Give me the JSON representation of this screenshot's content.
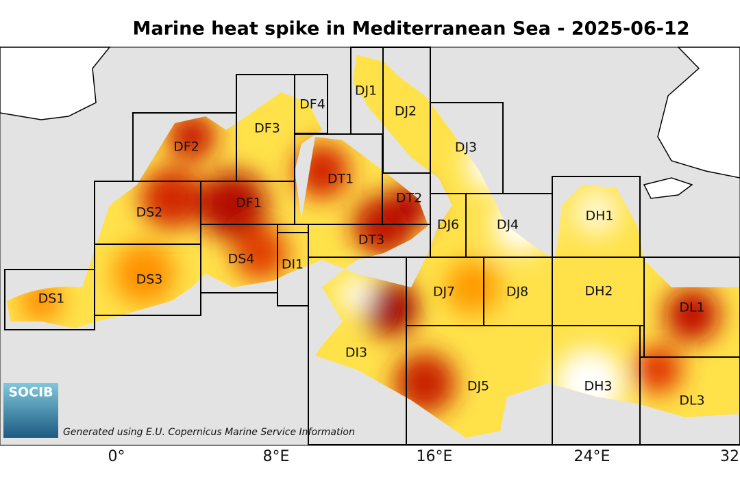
{
  "title": "Marine heat spike in Mediterranean Sea - 2025-06-12",
  "regions": [
    {
      "label": "DS1"
    },
    {
      "label": "DS2"
    },
    {
      "label": "DS3"
    },
    {
      "label": "DS4"
    },
    {
      "label": "DF1"
    },
    {
      "label": "DF2"
    },
    {
      "label": "DF3"
    },
    {
      "label": "DF4"
    },
    {
      "label": "DI1"
    },
    {
      "label": "DI3"
    },
    {
      "label": "DT1"
    },
    {
      "label": "DT2"
    },
    {
      "label": "DT3"
    },
    {
      "label": "DJ1"
    },
    {
      "label": "DJ2"
    },
    {
      "label": "DJ3"
    },
    {
      "label": "DJ4"
    },
    {
      "label": "DJ5"
    },
    {
      "label": "DJ6"
    },
    {
      "label": "DJ7"
    },
    {
      "label": "DJ8"
    },
    {
      "label": "DH1"
    },
    {
      "label": "DH2"
    },
    {
      "label": "DH3"
    },
    {
      "label": "DL1"
    },
    {
      "label": "DL3"
    }
  ],
  "x_axis": {
    "ticks": [
      "0°",
      "8°E",
      "16°E",
      "24°E",
      "32"
    ]
  },
  "logo": "SOCIB",
  "credit": "Generated using E.U. Copernicus Marine Service Information"
}
